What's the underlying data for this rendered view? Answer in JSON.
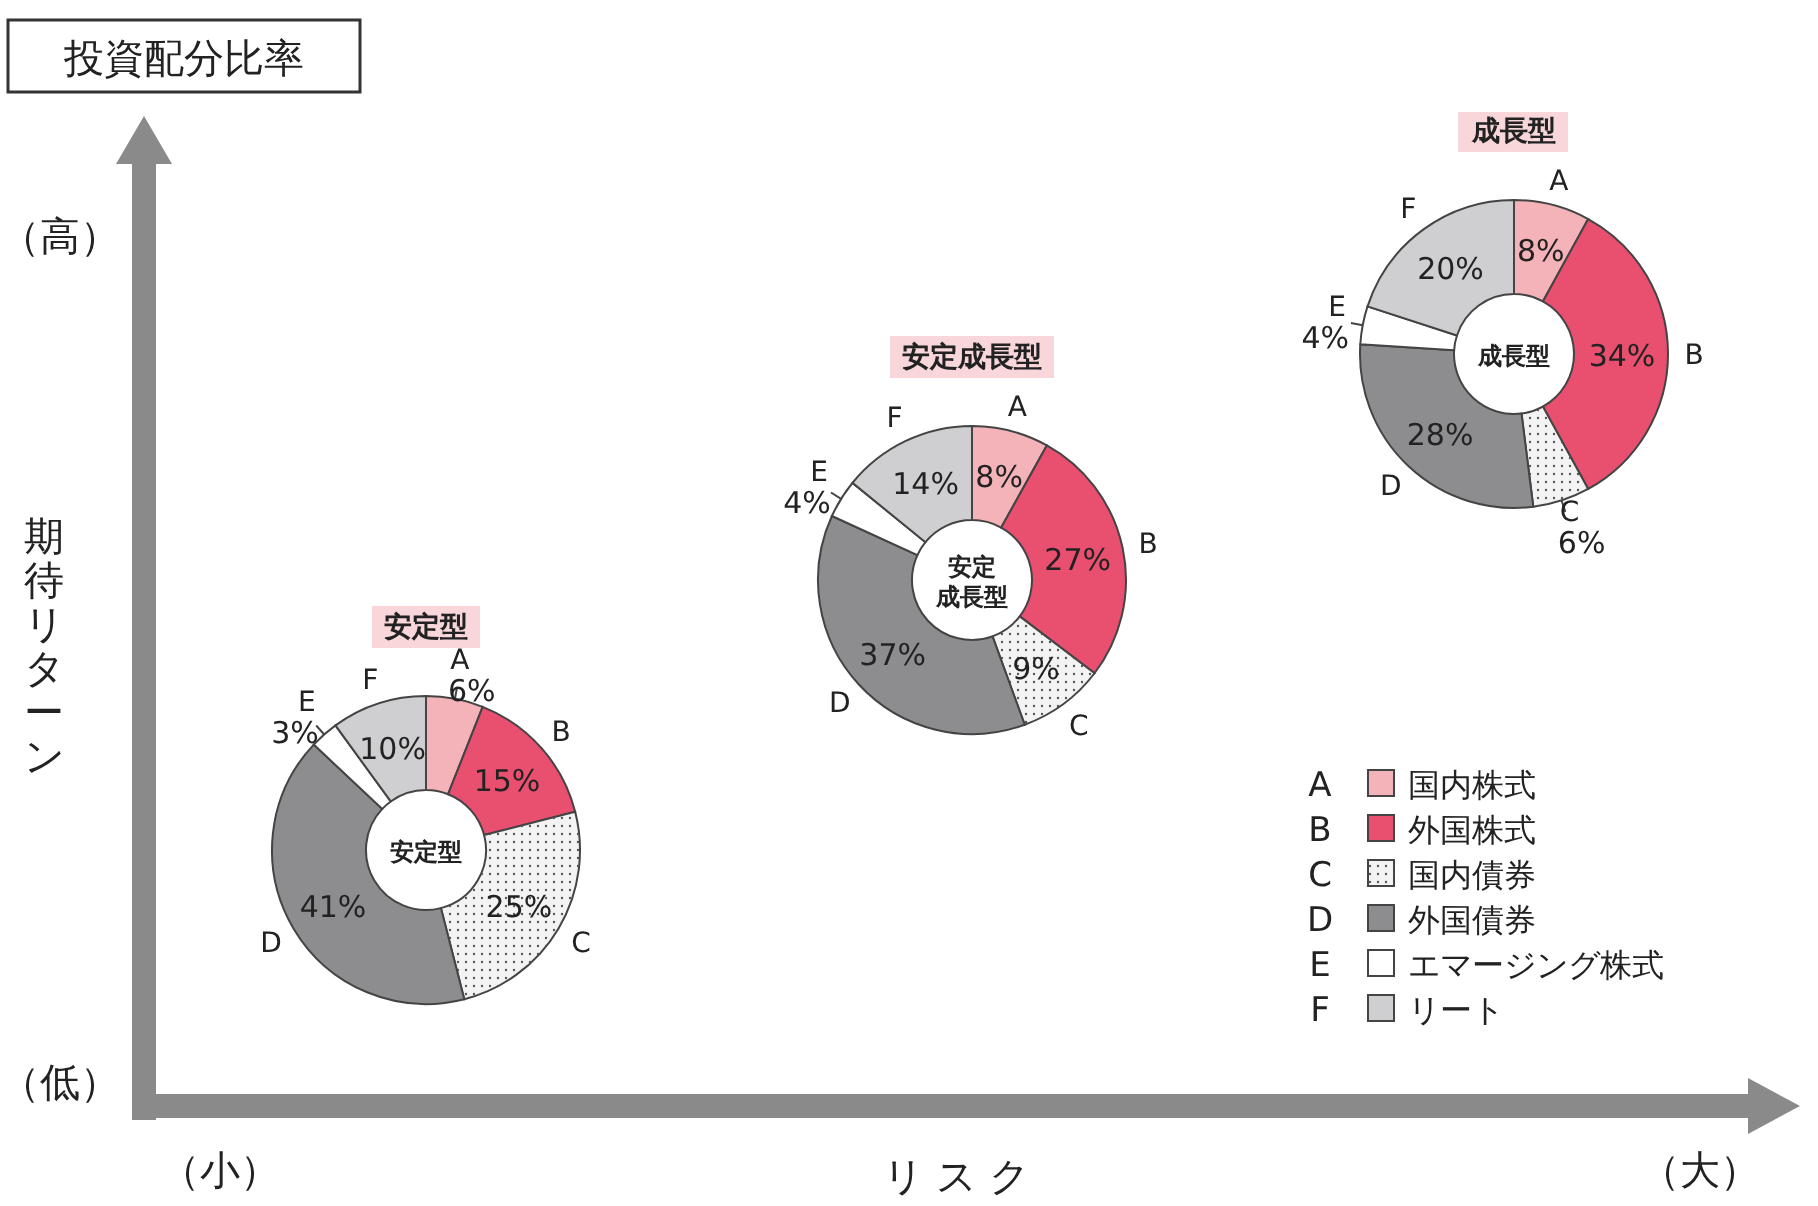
{
  "chart_data": [
    {
      "type": "other",
      "title": "投資配分比率",
      "xlabel": "リ ス ク",
      "ylabel": "期待リターン",
      "annotations": [
        "（高）",
        "（低）",
        "（小）",
        "（大）",
        "A",
        "B",
        "C",
        "D",
        "E",
        "F"
      ],
      "categories": [
        "国内株式",
        "外国株式",
        "国内債券",
        "外国債券",
        "エマージング株式",
        "リート"
      ],
      "colors": [
        "#f4b3b8",
        "#e94f6f",
        "#f3f3f3",
        "#8d8d8f",
        "#ffffff",
        "#cfcfd1"
      ]
    },
    {
      "type": "donut",
      "title": "安定型",
      "annotations": [
        "安定型"
      ],
      "categories": [
        "A",
        "B",
        "C",
        "D",
        "E",
        "F"
      ],
      "values": [
        6,
        15,
        25,
        41,
        3,
        10
      ],
      "value_labels": [
        "6%",
        "15%",
        "25%",
        "41%",
        "3%",
        "10%"
      ],
      "colors": [
        "#f4b3b8",
        "#e94f6f",
        "#f3f3f3",
        "#8d8d8f",
        "#ffffff",
        "#cfcfd1"
      ]
    },
    {
      "type": "donut",
      "title": "安定成長型",
      "annotations": [
        "安定成長型"
      ],
      "categories": [
        "A",
        "B",
        "C",
        "D",
        "E",
        "F"
      ],
      "values": [
        8,
        27,
        9,
        37,
        4,
        14
      ],
      "value_labels": [
        "8%",
        "27%",
        "9%",
        "37%",
        "4%",
        "14%"
      ],
      "colors": [
        "#f4b3b8",
        "#e94f6f",
        "#f3f3f3",
        "#8d8d8f",
        "#ffffff",
        "#cfcfd1"
      ]
    },
    {
      "type": "donut",
      "title": "成長型",
      "annotations": [
        "成長型"
      ],
      "categories": [
        "A",
        "B",
        "C",
        "D",
        "E",
        "F"
      ],
      "values": [
        8,
        34,
        6,
        28,
        4,
        20
      ],
      "value_labels": [
        "8%",
        "34%",
        "6%",
        "28%",
        "4%",
        "20%"
      ],
      "colors": [
        "#f4b3b8",
        "#e94f6f",
        "#f3f3f3",
        "#8d8d8f",
        "#ffffff",
        "#cfcfd1"
      ]
    }
  ]
}
